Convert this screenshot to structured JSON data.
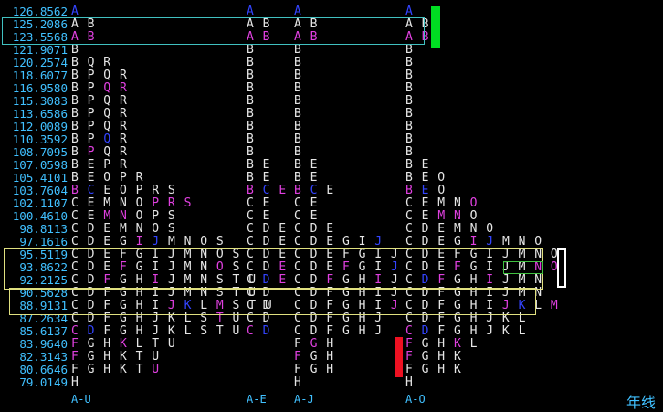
{
  "prices": [
    "126.8562",
    "125.2086",
    "123.5568",
    "121.9071",
    "120.2574",
    "118.6077",
    "116.9580",
    "115.3083",
    "113.6586",
    "112.0089",
    "110.3592",
    "108.7095",
    "107.0598",
    "105.4101",
    "103.7604",
    "102.1107",
    "100.4610",
    "98.8113",
    "97.1616",
    "95.5119",
    "93.8622",
    "92.2125",
    "90.5628",
    "88.9131",
    "87.2634",
    "85.6137",
    "83.9640",
    "82.3143",
    "80.6646",
    "79.0149"
  ],
  "columns": [
    {
      "rows": [
        [
          [
            "b",
            "A"
          ]
        ],
        [
          [
            "w",
            "AB"
          ]
        ],
        [
          [
            "m",
            "AB"
          ]
        ],
        [
          [
            "w",
            "B"
          ]
        ],
        [
          [
            "w",
            "BQR"
          ]
        ],
        [
          [
            "w",
            "BPQR"
          ]
        ],
        [
          [
            "w",
            "BP"
          ],
          [
            "m",
            "QR"
          ]
        ],
        [
          [
            "w",
            "BPQR"
          ]
        ],
        [
          [
            "w",
            "BPQR"
          ]
        ],
        [
          [
            "w",
            "BPQR"
          ]
        ],
        [
          [
            "w",
            "BP"
          ],
          [
            "b",
            "Q"
          ],
          [
            "w",
            "R"
          ]
        ],
        [
          [
            "w",
            "B"
          ],
          [
            "m",
            "P"
          ],
          [
            "w",
            "QR"
          ]
        ],
        [
          [
            "w",
            "BEPR"
          ]
        ],
        [
          [
            "w",
            "BEOPR"
          ]
        ],
        [
          [
            "m",
            "B"
          ],
          [
            "b",
            "C"
          ],
          [
            "w",
            "EOPRS"
          ]
        ],
        [
          [
            "w",
            "CEMNO"
          ],
          [
            "m",
            "PRS"
          ]
        ],
        [
          [
            "w",
            "CE"
          ],
          [
            "m",
            "MN"
          ],
          [
            "w",
            "OPS"
          ]
        ],
        [
          [
            "w",
            "CDEMNOS"
          ]
        ],
        [
          [
            "w",
            "CDEG"
          ],
          [
            "m",
            "I"
          ],
          [
            "b",
            "J"
          ],
          [
            "w",
            "MNOS"
          ]
        ],
        [
          [
            "w",
            "CDEFGIJMNOS"
          ]
        ],
        [
          [
            "w",
            "CDE"
          ],
          [
            "m",
            "F"
          ],
          [
            "w",
            "GIJMN"
          ],
          [
            "m",
            "O"
          ],
          [
            "w",
            "S"
          ]
        ],
        [
          [
            "w",
            "CD"
          ],
          [
            "m",
            "F"
          ],
          [
            "w",
            "GH"
          ],
          [
            "m",
            "I"
          ],
          [
            "w",
            "JMNSTU"
          ]
        ],
        [
          [
            "w",
            "CDFGHIJMNSTU"
          ]
        ],
        [
          [
            "w",
            "CDFGHI"
          ],
          [
            "m",
            "J"
          ],
          [
            "b",
            "K"
          ],
          [
            "w",
            "L"
          ],
          [
            "m",
            "M"
          ],
          [
            "w",
            "STU"
          ]
        ],
        [
          [
            "w",
            "CDFGHJKLS"
          ],
          [
            "m",
            "T"
          ],
          [
            "w",
            "U"
          ]
        ],
        [
          [
            "m",
            "C"
          ],
          [
            "b",
            "D"
          ],
          [
            "w",
            "FGHJKLSTU"
          ]
        ],
        [
          [
            "m",
            "F"
          ],
          [
            "w",
            "GH"
          ],
          [
            "m",
            "K"
          ],
          [
            "w",
            "LTU"
          ]
        ],
        [
          [
            "m",
            "F"
          ],
          [
            "w",
            "GHKTU"
          ]
        ],
        [
          [
            "w",
            "FGHKT"
          ],
          [
            "m",
            "U"
          ]
        ],
        [
          [
            "w",
            "H"
          ]
        ]
      ]
    },
    {
      "rows": [
        [
          [
            "b",
            "A"
          ]
        ],
        [
          [
            "w",
            "AB"
          ]
        ],
        [
          [
            "m",
            "AB"
          ]
        ],
        [
          [
            "w",
            "B"
          ]
        ],
        [
          [
            "w",
            "B"
          ]
        ],
        [
          [
            "w",
            "B"
          ]
        ],
        [
          [
            "w",
            "B"
          ]
        ],
        [
          [
            "w",
            "B"
          ]
        ],
        [
          [
            "w",
            "B"
          ]
        ],
        [
          [
            "w",
            "B"
          ]
        ],
        [
          [
            "w",
            "B"
          ]
        ],
        [
          [
            "w",
            "B"
          ]
        ],
        [
          [
            "w",
            "BE"
          ]
        ],
        [
          [
            "w",
            "BE"
          ]
        ],
        [
          [
            "m",
            "B"
          ],
          [
            "b",
            "C"
          ],
          [
            "m",
            "E"
          ]
        ],
        [
          [
            "w",
            "CE"
          ]
        ],
        [
          [
            "w",
            "CE"
          ]
        ],
        [
          [
            "w",
            "CDE"
          ]
        ],
        [
          [
            "w",
            "CDE"
          ]
        ],
        [
          [
            "w",
            "CDE"
          ]
        ],
        [
          [
            "w",
            "CD"
          ],
          [
            "m",
            "E"
          ]
        ],
        [
          [
            "w",
            "C"
          ],
          [
            "b",
            "D"
          ],
          [
            "m",
            "E"
          ]
        ],
        [
          [
            "w",
            "CD"
          ]
        ],
        [
          [
            "w",
            "CD"
          ]
        ],
        [
          [
            "w",
            "CD"
          ]
        ],
        [
          [
            "m",
            "C"
          ],
          [
            "b",
            "D"
          ]
        ],
        [
          [
            "w",
            ""
          ]
        ],
        [
          [
            "w",
            ""
          ]
        ],
        [
          [
            "w",
            ""
          ]
        ],
        [
          [
            "w",
            ""
          ]
        ]
      ]
    },
    {
      "rows": [
        [
          [
            "b",
            "A"
          ]
        ],
        [
          [
            "w",
            "AB"
          ]
        ],
        [
          [
            "m",
            "AB"
          ]
        ],
        [
          [
            "w",
            "B"
          ]
        ],
        [
          [
            "w",
            "B"
          ]
        ],
        [
          [
            "w",
            "B"
          ]
        ],
        [
          [
            "w",
            "B"
          ]
        ],
        [
          [
            "w",
            "B"
          ]
        ],
        [
          [
            "w",
            "B"
          ]
        ],
        [
          [
            "w",
            "B"
          ]
        ],
        [
          [
            "w",
            "B"
          ]
        ],
        [
          [
            "w",
            "B"
          ]
        ],
        [
          [
            "w",
            "BE"
          ]
        ],
        [
          [
            "w",
            "BE"
          ]
        ],
        [
          [
            "m",
            "B"
          ],
          [
            "b",
            "C"
          ],
          [
            "w",
            "E"
          ]
        ],
        [
          [
            "w",
            "CE"
          ]
        ],
        [
          [
            "w",
            "CE"
          ]
        ],
        [
          [
            "w",
            "CDE"
          ]
        ],
        [
          [
            "w",
            "CDEGI"
          ],
          [
            "b",
            "J"
          ]
        ],
        [
          [
            "w",
            "CDEFGIJ"
          ]
        ],
        [
          [
            "w",
            "CDE"
          ],
          [
            "m",
            "F"
          ],
          [
            "w",
            "GI"
          ],
          [
            "b",
            "J"
          ]
        ],
        [
          [
            "w",
            "CD"
          ],
          [
            "m",
            "F"
          ],
          [
            "w",
            "GH"
          ],
          [
            "m",
            "I"
          ],
          [
            "w",
            "J"
          ]
        ],
        [
          [
            "w",
            "CDFGHIJ"
          ]
        ],
        [
          [
            "w",
            "CDFGHI"
          ],
          [
            "m",
            "J"
          ]
        ],
        [
          [
            "w",
            "CDFGHJ"
          ]
        ],
        [
          [
            "w",
            "CDFGHJ"
          ]
        ],
        [
          [
            "w",
            "F"
          ],
          [
            "m",
            "G"
          ],
          [
            "w",
            "H"
          ]
        ],
        [
          [
            "m",
            "F"
          ],
          [
            "w",
            "GH"
          ]
        ],
        [
          [
            "w",
            "FGH"
          ]
        ],
        [
          [
            "w",
            "H"
          ]
        ]
      ]
    },
    {
      "rows": [
        [
          [
            "b",
            "A"
          ]
        ],
        [
          [
            "w",
            "AB"
          ]
        ],
        [
          [
            "m",
            "AB"
          ]
        ],
        [
          [
            "w",
            "B"
          ]
        ],
        [
          [
            "w",
            "B"
          ]
        ],
        [
          [
            "w",
            "B"
          ]
        ],
        [
          [
            "w",
            "B"
          ]
        ],
        [
          [
            "w",
            "B"
          ]
        ],
        [
          [
            "w",
            "B"
          ]
        ],
        [
          [
            "w",
            "B"
          ]
        ],
        [
          [
            "w",
            "B"
          ]
        ],
        [
          [
            "w",
            "B"
          ]
        ],
        [
          [
            "w",
            "BE"
          ]
        ],
        [
          [
            "w",
            "BEO"
          ]
        ],
        [
          [
            "m",
            "B"
          ],
          [
            "b",
            "E"
          ],
          [
            "w",
            "O"
          ]
        ],
        [
          [
            "w",
            "CEMN"
          ],
          [
            "m",
            "O"
          ]
        ],
        [
          [
            "w",
            "CE"
          ],
          [
            "m",
            "MN"
          ],
          [
            "w",
            "O"
          ]
        ],
        [
          [
            "w",
            "CDEMNO"
          ]
        ],
        [
          [
            "w",
            "CDEG"
          ],
          [
            "m",
            "I"
          ],
          [
            "b",
            "J"
          ],
          [
            "w",
            "MNO"
          ]
        ],
        [
          [
            "w",
            "CDEFGIJMNO"
          ]
        ],
        [
          [
            "w",
            "CDE"
          ],
          [
            "m",
            "F"
          ],
          [
            "w",
            "GIJM"
          ],
          [
            "m",
            "NO"
          ]
        ],
        [
          [
            "w",
            "C"
          ],
          [
            "b",
            "D"
          ],
          [
            "m",
            "F"
          ],
          [
            "w",
            "GH"
          ],
          [
            "m",
            "I"
          ],
          [
            "w",
            "JMN"
          ]
        ],
        [
          [
            "w",
            "CDFGHIJMN"
          ]
        ],
        [
          [
            "w",
            "CDFGHI"
          ],
          [
            "m",
            "J"
          ],
          [
            "b",
            "K"
          ],
          [
            "w",
            "L"
          ],
          [
            "m",
            "M"
          ]
        ],
        [
          [
            "w",
            "CDFGHJKL"
          ]
        ],
        [
          [
            "m",
            "C"
          ],
          [
            "b",
            "D"
          ],
          [
            "w",
            "FGHJKL"
          ]
        ],
        [
          [
            "m",
            "F"
          ],
          [
            "w",
            "GH"
          ],
          [
            "m",
            "K"
          ],
          [
            "w",
            "L"
          ]
        ],
        [
          [
            "m",
            "F"
          ],
          [
            "w",
            "GHK"
          ]
        ],
        [
          [
            "w",
            "FGHK"
          ]
        ],
        [
          [
            "w",
            "H"
          ]
        ]
      ]
    }
  ],
  "footer_labels": [
    "A-U",
    "A-E",
    "A-J",
    "A-O"
  ],
  "period_label": "年线",
  "colors": {
    "price": "#40c0ff",
    "text": "#e6e6e6",
    "blue": "#3344ff",
    "magenta": "#e040e0",
    "cyan_box": "#40c0c0",
    "yellow_box": "#e0e080",
    "green_bar": "#00dd22",
    "red_bar": "#ee1122"
  }
}
